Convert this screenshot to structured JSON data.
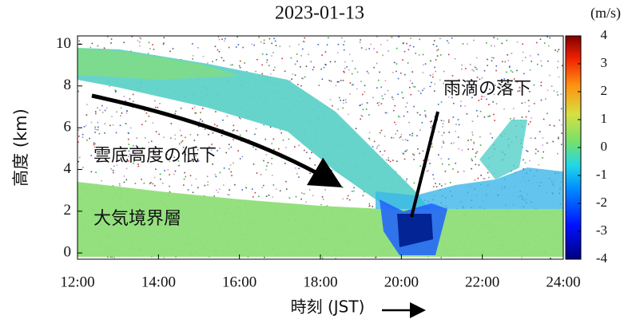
{
  "chart_data": {
    "type": "heatmap",
    "title": "2023-01-13",
    "x_label": "時刻 (JST)",
    "y_label": "高度 (km)",
    "xlim": [
      12,
      24
    ],
    "xticks": [
      {
        "value": 12,
        "label": "12:00"
      },
      {
        "value": 14,
        "label": "14:00"
      },
      {
        "value": 16,
        "label": "16:00"
      },
      {
        "value": 18,
        "label": "18:00"
      },
      {
        "value": 20,
        "label": "20:00"
      },
      {
        "value": 22,
        "label": "22:00"
      },
      {
        "value": 24,
        "label": "24:00"
      }
    ],
    "ylim": [
      -0.3,
      10.4
    ],
    "yticks": [
      0,
      2,
      4,
      6,
      8,
      10
    ],
    "colorbar": {
      "label": "(m/s)",
      "lim": [
        -4,
        4
      ],
      "ticks": [
        -4,
        -3,
        -2,
        -1,
        0,
        1,
        2,
        3,
        4
      ]
    },
    "annotations": [
      "雲底高度の低下",
      "大気境界層",
      "雨滴の落下"
    ]
  }
}
